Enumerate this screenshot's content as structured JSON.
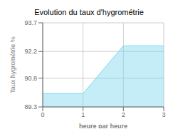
{
  "chart_data": {
    "type": "area",
    "title": "Evolution du taux d'hygrométrie",
    "x_label": "heure par heure",
    "y_label": "Taux hygrométrie %",
    "x": [
      0,
      1,
      2,
      3
    ],
    "values": [
      90.0,
      90.0,
      92.5,
      92.5
    ],
    "color": "#7dd8f0",
    "xlim": [
      0,
      3
    ],
    "xticks": [
      0,
      1,
      2,
      3
    ],
    "ylim": [
      89.3,
      93.7
    ],
    "yticks": [
      89.3,
      90.8,
      92.2,
      93.7
    ],
    "grid": true
  }
}
